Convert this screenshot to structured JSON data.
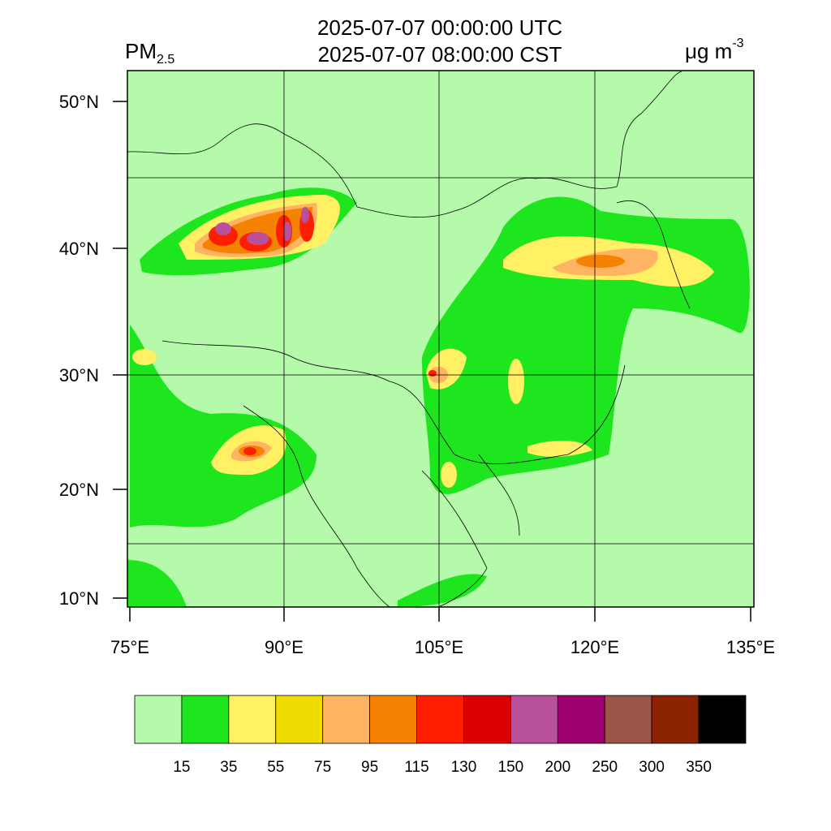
{
  "header": {
    "title_lines": [
      "2025-07-07 00:00:00 UTC",
      "2025-07-07 08:00:00 CST"
    ],
    "variable": {
      "name": "PM",
      "subscript": "2.5"
    },
    "units": {
      "text": "μg m",
      "superscript": "-3"
    }
  },
  "map": {
    "lat_labels": [
      "50°N",
      "40°N",
      "30°N",
      "20°N",
      "10°N"
    ],
    "lon_labels": [
      "75°E",
      "90°E",
      "105°E",
      "120°E",
      "135°E"
    ]
  },
  "colorbar": {
    "colors": [
      "#b4faaa",
      "#1ee61e",
      "#fff064",
      "#f0dc00",
      "#ffb464",
      "#f58200",
      "#ff1e00",
      "#dc0000",
      "#b9509b",
      "#9b006e",
      "#9b5546",
      "#8c2300",
      "#000000"
    ],
    "labels": [
      15,
      35,
      55,
      75,
      95,
      115,
      130,
      150,
      200,
      250,
      300,
      350
    ]
  }
}
